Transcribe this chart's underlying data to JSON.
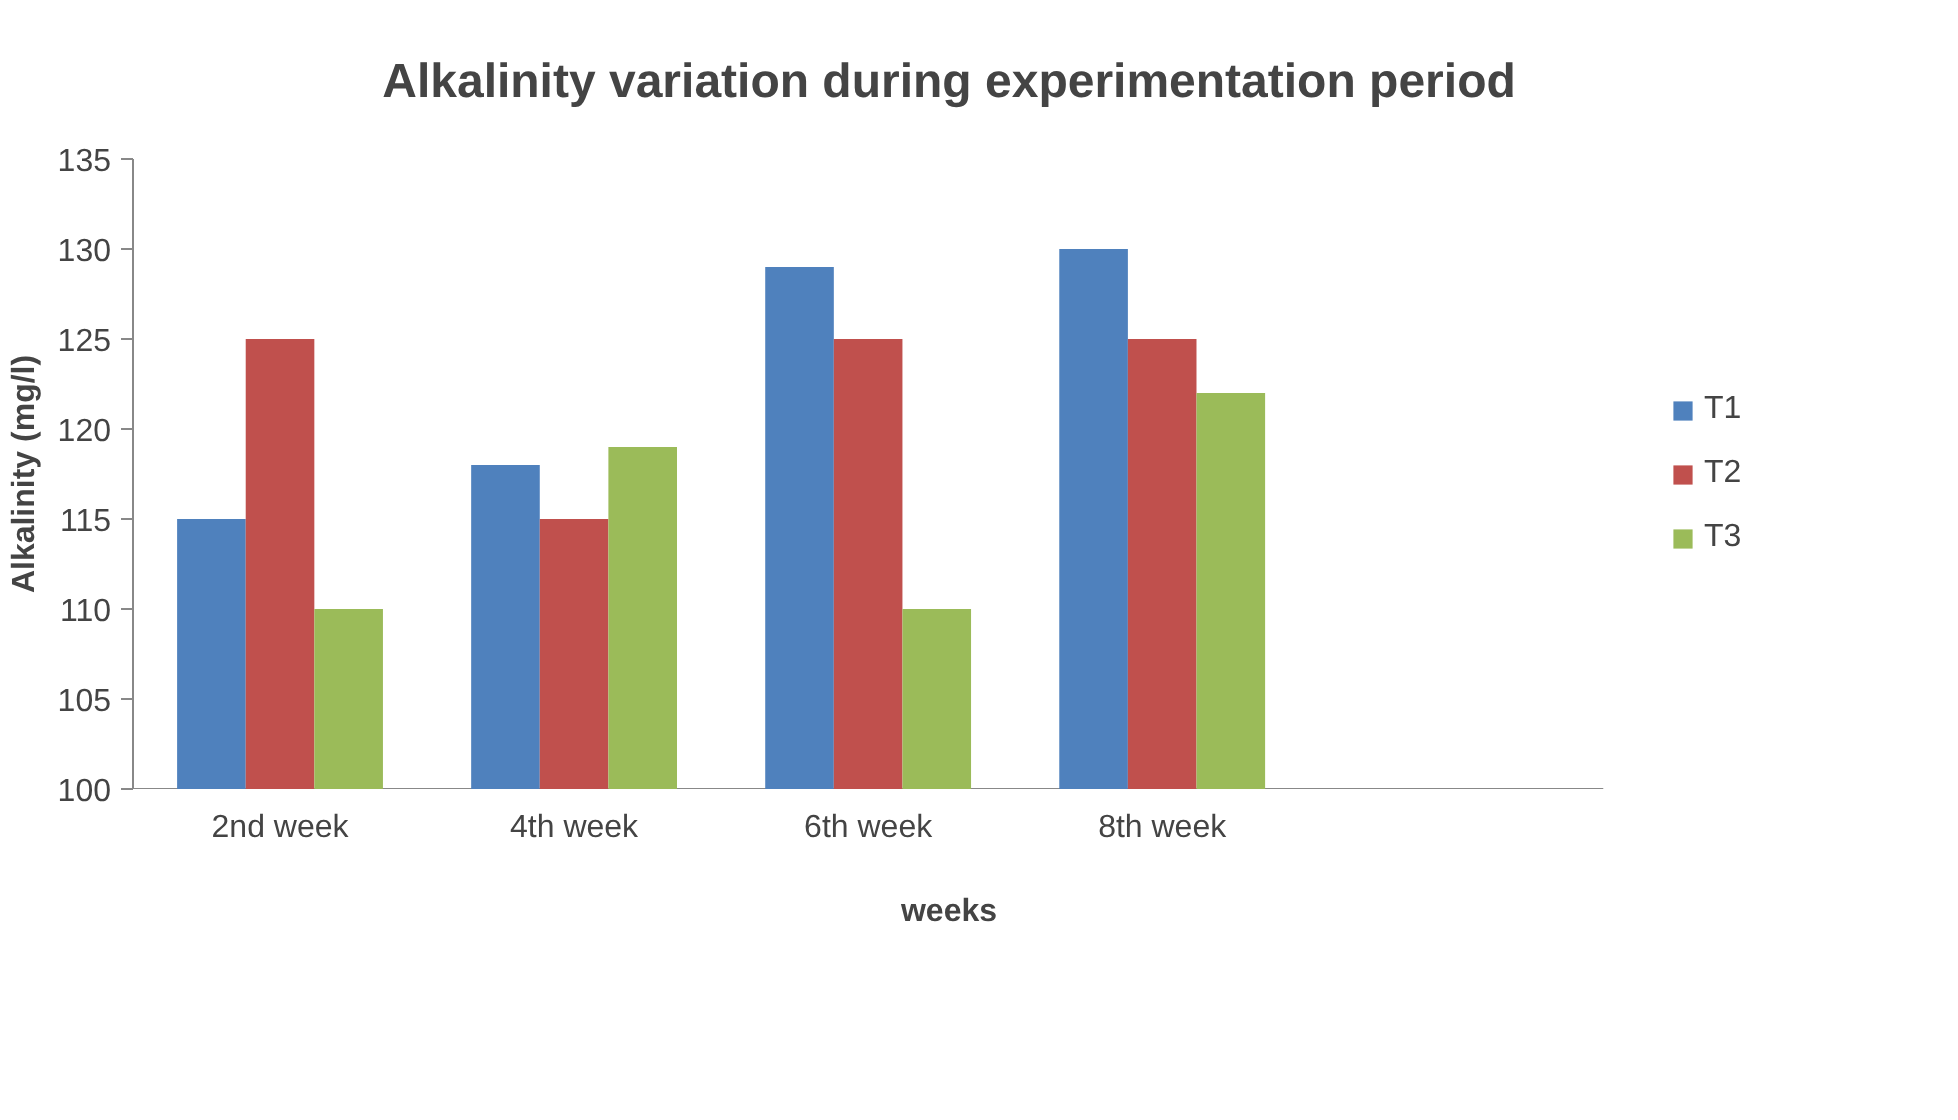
{
  "chart_data": {
    "type": "bar",
    "title": "Alkalinity variation during experimentation period",
    "xlabel": "weeks",
    "ylabel": "Alkalinity (mg/l)",
    "categories": [
      "2nd week",
      "4th week",
      "6th week",
      "8th week",
      null
    ],
    "series": [
      {
        "name": "T1",
        "color": "#4f81bd",
        "values": [
          115,
          118,
          129,
          130,
          null
        ]
      },
      {
        "name": "T2",
        "color": "#c0504d",
        "values": [
          125,
          115,
          125,
          125,
          null
        ]
      },
      {
        "name": "T3",
        "color": "#9bbb59",
        "values": [
          110,
          119,
          110,
          122,
          null
        ]
      }
    ],
    "ylim": [
      100,
      135
    ],
    "yticks": [
      100,
      105,
      110,
      115,
      120,
      125,
      130,
      135
    ],
    "grid": false,
    "legend": "right"
  }
}
